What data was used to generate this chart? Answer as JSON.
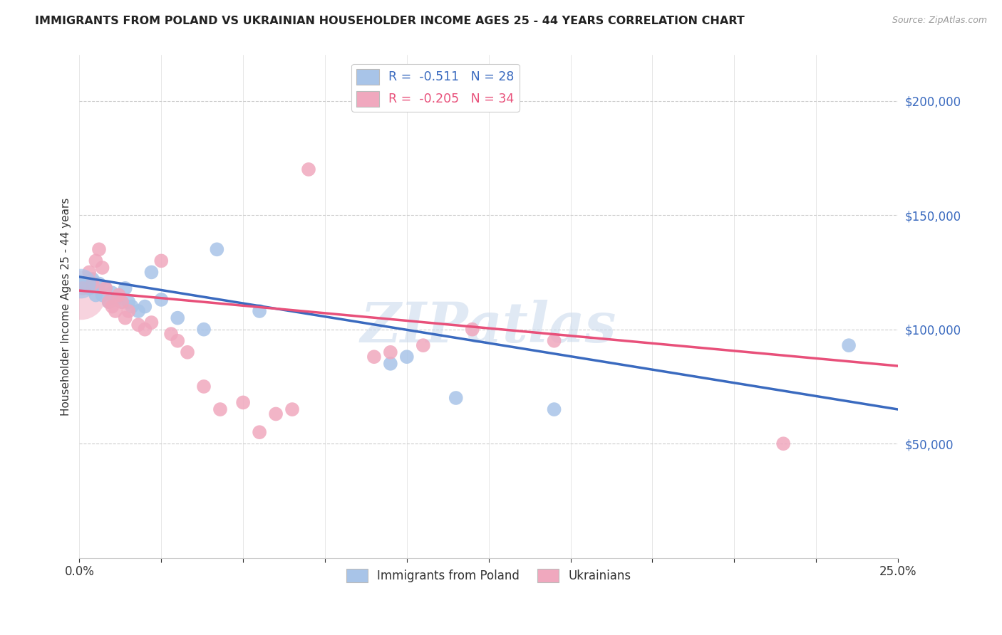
{
  "title": "IMMIGRANTS FROM POLAND VS UKRAINIAN HOUSEHOLDER INCOME AGES 25 - 44 YEARS CORRELATION CHART",
  "source": "Source: ZipAtlas.com",
  "ylabel": "Householder Income Ages 25 - 44 years",
  "yticks": [
    50000,
    100000,
    150000,
    200000
  ],
  "ytick_labels": [
    "$50,000",
    "$100,000",
    "$150,000",
    "$200,000"
  ],
  "xlim": [
    0.0,
    0.25
  ],
  "ylim": [
    0,
    220000
  ],
  "legend_label1": "R =  -0.511   N = 28",
  "legend_label2": "R =  -0.205   N = 34",
  "legend_series1": "Immigrants from Poland",
  "legend_series2": "Ukrainians",
  "poland_color": "#a8c4e8",
  "ukraine_color": "#f0a8be",
  "poland_line_color": "#3a6abf",
  "ukraine_line_color": "#e8507a",
  "watermark": "ZIPatlas",
  "poland_x": [
    0.001,
    0.003,
    0.004,
    0.005,
    0.006,
    0.007,
    0.008,
    0.009,
    0.01,
    0.011,
    0.012,
    0.013,
    0.014,
    0.015,
    0.016,
    0.018,
    0.02,
    0.022,
    0.025,
    0.03,
    0.038,
    0.042,
    0.055,
    0.095,
    0.1,
    0.115,
    0.145,
    0.235
  ],
  "poland_y": [
    120000,
    118000,
    122000,
    115000,
    120000,
    115000,
    118000,
    112000,
    116000,
    113000,
    115000,
    112000,
    118000,
    112000,
    110000,
    108000,
    110000,
    125000,
    113000,
    105000,
    100000,
    135000,
    108000,
    85000,
    88000,
    70000,
    65000,
    93000
  ],
  "ukraine_x": [
    0.001,
    0.003,
    0.004,
    0.005,
    0.006,
    0.007,
    0.008,
    0.009,
    0.01,
    0.011,
    0.012,
    0.013,
    0.014,
    0.015,
    0.018,
    0.02,
    0.022,
    0.025,
    0.028,
    0.03,
    0.033,
    0.038,
    0.043,
    0.05,
    0.055,
    0.06,
    0.065,
    0.07,
    0.09,
    0.095,
    0.105,
    0.12,
    0.145,
    0.215
  ],
  "ukraine_y": [
    118000,
    125000,
    120000,
    130000,
    135000,
    127000,
    118000,
    112000,
    110000,
    108000,
    115000,
    112000,
    105000,
    108000,
    102000,
    100000,
    103000,
    130000,
    98000,
    95000,
    90000,
    75000,
    65000,
    68000,
    55000,
    63000,
    65000,
    170000,
    88000,
    90000,
    93000,
    100000,
    95000,
    50000
  ],
  "poland_line_x0": 0.0,
  "poland_line_y0": 123000,
  "poland_line_x1": 0.25,
  "poland_line_y1": 65000,
  "ukraine_line_x0": 0.0,
  "ukraine_line_y0": 117000,
  "ukraine_line_x1": 0.25,
  "ukraine_line_y1": 84000
}
